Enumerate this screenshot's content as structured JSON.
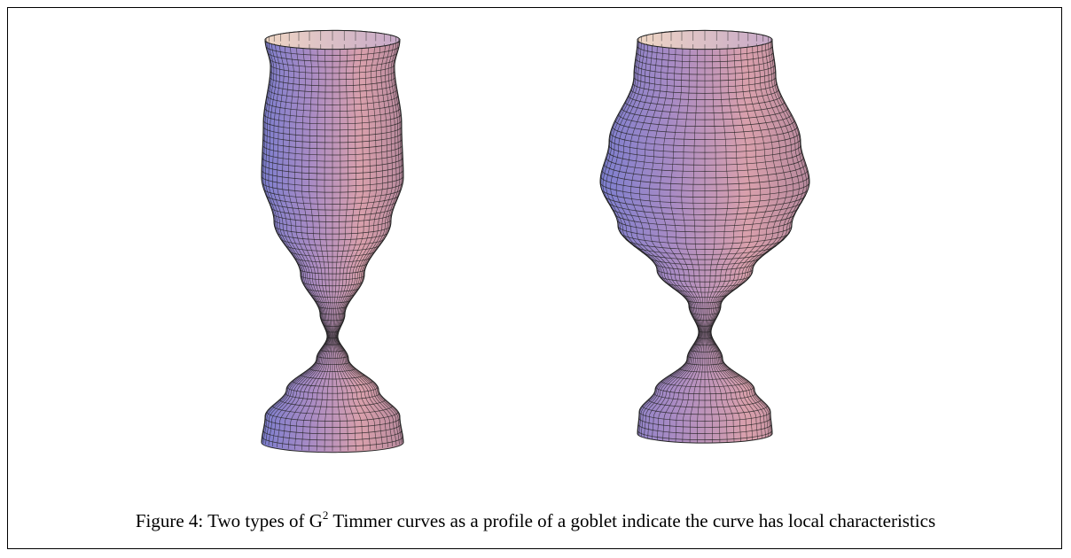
{
  "caption": {
    "label": "Figure 4:",
    "text_before": "Two types of G",
    "superscript": "2",
    "text_after": "Timmer curves as a profile of a goblet indicate the curve has local characteristics"
  }
}
